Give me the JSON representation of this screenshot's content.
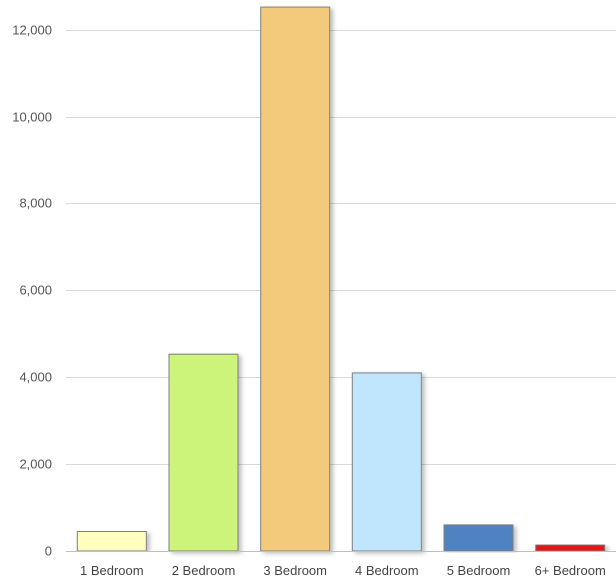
{
  "chart_data": {
    "type": "bar",
    "categories": [
      "1 Bedroom",
      "2 Bedroom",
      "3 Bedroom",
      "4 Bedroom",
      "5 Bedroom",
      "6+ Bedroom"
    ],
    "values": [
      450,
      4530,
      12520,
      4100,
      600,
      140
    ],
    "colors": [
      "#ffffc0",
      "#ccf47a",
      "#f3c97b",
      "#c0e6fd",
      "#5082c0",
      "#e41414"
    ],
    "ylim": [
      0,
      12500
    ],
    "yticks": [
      0,
      2000,
      4000,
      6000,
      8000,
      10000,
      12000
    ],
    "ytick_labels": [
      "0",
      "2,000",
      "4,000",
      "6,000",
      "8,000",
      "10,000",
      "12,000"
    ],
    "grid": true,
    "legend": "none",
    "title": "",
    "xlabel": "",
    "ylabel": ""
  }
}
